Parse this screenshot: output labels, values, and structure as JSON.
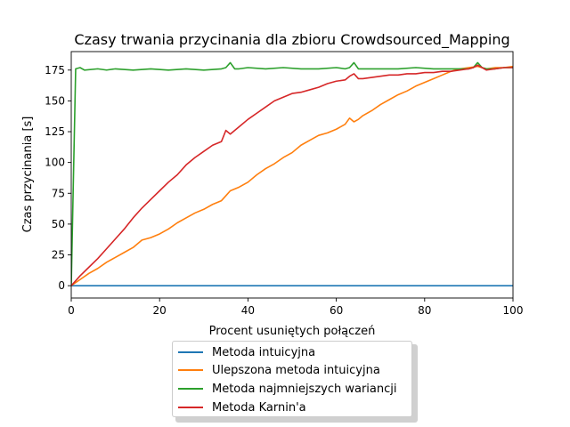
{
  "chart_data": {
    "type": "line",
    "title": "Czasy trwania przycinania dla zbioru Crowdsourced_Mapping",
    "xlabel": "Procent usuniętych połączeń",
    "ylabel": "Czas przycinania [s]",
    "xlim": [
      0,
      100
    ],
    "ylim": [
      -10,
      190
    ],
    "xticks": [
      0,
      20,
      40,
      60,
      80,
      100
    ],
    "yticks": [
      0,
      25,
      50,
      75,
      100,
      125,
      150,
      175
    ],
    "grid": false,
    "legend_position": "below",
    "series": [
      {
        "name": "Metoda intuicyjna",
        "color": "#1f77b4",
        "x": [
          0,
          100
        ],
        "y": [
          0,
          0
        ]
      },
      {
        "name": "Ulepszona metoda intuicyjna",
        "color": "#ff7f0e",
        "x": [
          0,
          2,
          4,
          6,
          8,
          10,
          12,
          14,
          16,
          18,
          20,
          22,
          24,
          26,
          28,
          30,
          32,
          34,
          35,
          36,
          38,
          40,
          42,
          44,
          46,
          48,
          50,
          52,
          54,
          56,
          58,
          60,
          62,
          63,
          64,
          65,
          66,
          68,
          70,
          72,
          74,
          76,
          78,
          80,
          82,
          84,
          86,
          88,
          90,
          92,
          94,
          96,
          98,
          100
        ],
        "y": [
          0,
          5,
          10,
          14,
          19,
          23,
          27,
          31,
          37,
          39,
          42,
          46,
          51,
          55,
          59,
          62,
          66,
          69,
          73,
          77,
          80,
          84,
          90,
          95,
          99,
          104,
          108,
          114,
          118,
          122,
          124,
          127,
          131,
          136,
          133,
          135,
          138,
          142,
          147,
          151,
          155,
          158,
          162,
          165,
          168,
          171,
          174,
          176,
          177,
          178,
          176,
          177,
          177,
          178
        ]
      },
      {
        "name": "Metoda najmniejszych wariancji",
        "color": "#2ca02c",
        "x": [
          0,
          1,
          2,
          3,
          6,
          8,
          10,
          14,
          18,
          22,
          26,
          30,
          34,
          35,
          36,
          37,
          38,
          40,
          44,
          48,
          52,
          56,
          60,
          62,
          63,
          64,
          65,
          66,
          70,
          74,
          78,
          82,
          86,
          90,
          91,
          92,
          93,
          94,
          96,
          98,
          100
        ],
        "y": [
          0,
          176,
          177,
          175,
          176,
          175,
          176,
          175,
          176,
          175,
          176,
          175,
          176,
          177,
          181,
          176,
          176,
          177,
          176,
          177,
          176,
          176,
          177,
          176,
          177,
          181,
          176,
          176,
          176,
          176,
          177,
          176,
          176,
          176,
          177,
          181,
          177,
          176,
          176,
          177,
          177
        ]
      },
      {
        "name": "Metoda Karnin'a",
        "color": "#d62728",
        "x": [
          0,
          2,
          4,
          6,
          8,
          10,
          12,
          14,
          16,
          18,
          20,
          22,
          24,
          26,
          28,
          30,
          32,
          34,
          35,
          36,
          37,
          38,
          40,
          42,
          44,
          46,
          48,
          50,
          52,
          54,
          56,
          58,
          60,
          62,
          63,
          64,
          65,
          66,
          68,
          70,
          72,
          74,
          76,
          78,
          80,
          82,
          84,
          86,
          88,
          90,
          91,
          92,
          93,
          94,
          96,
          98,
          100
        ],
        "y": [
          0,
          8,
          15,
          22,
          30,
          38,
          46,
          55,
          63,
          70,
          77,
          84,
          90,
          98,
          104,
          109,
          114,
          117,
          126,
          123,
          126,
          129,
          135,
          140,
          145,
          150,
          153,
          156,
          157,
          159,
          161,
          164,
          166,
          167,
          170,
          172,
          168,
          168,
          169,
          170,
          171,
          171,
          172,
          172,
          173,
          173,
          174,
          174,
          175,
          176,
          177,
          179,
          177,
          175,
          176,
          177,
          177
        ]
      }
    ]
  }
}
